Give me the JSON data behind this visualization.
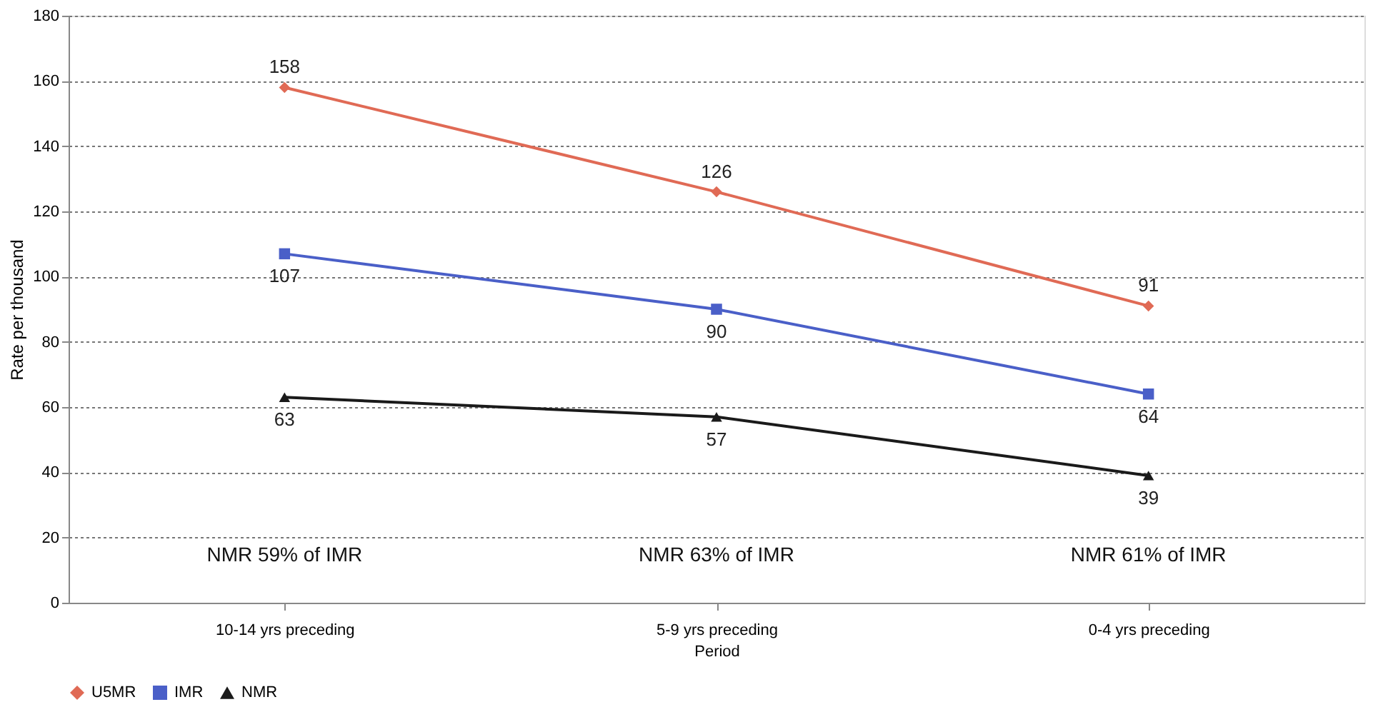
{
  "chart_data": {
    "type": "line",
    "xlabel": "Period",
    "ylabel": "Rate per thousand",
    "categories": [
      "10-14 yrs preceding",
      "5-9 yrs preceding",
      "0-4 yrs preceding"
    ],
    "series": [
      {
        "name": "U5MR",
        "color": "#e06a55",
        "values": [
          158,
          126,
          91
        ],
        "marker": "diamond"
      },
      {
        "name": "IMR",
        "color": "#4a5fc8",
        "values": [
          107,
          90,
          64
        ],
        "marker": "square"
      },
      {
        "name": "NMR",
        "color": "#1a1a1a",
        "values": [
          63,
          57,
          39
        ],
        "marker": "triangle"
      }
    ],
    "ylim": [
      0,
      180
    ],
    "yticks": [
      0,
      20,
      40,
      60,
      80,
      100,
      120,
      140,
      160,
      180
    ],
    "grid": "y",
    "legend": "bottom",
    "data_labels": true,
    "annotations": [
      "NMR 59% of IMR",
      "NMR 63% of IMR",
      "NMR 61% of IMR"
    ]
  }
}
